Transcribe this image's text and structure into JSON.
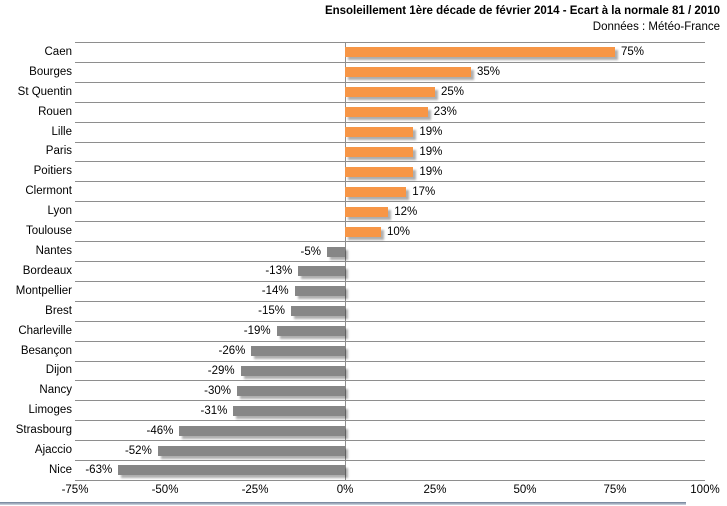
{
  "chart_data": {
    "type": "bar",
    "orientation": "horizontal",
    "title": "Ensoleillement 1ère décade de février 2014 - Ecart à la normale 81 / 2010",
    "subtitle": "Données : Météo-France",
    "categories": [
      "Caen",
      "Bourges",
      "St Quentin",
      "Rouen",
      "Lille",
      "Paris",
      "Poitiers",
      "Clermont",
      "Lyon",
      "Toulouse",
      "Nantes",
      "Bordeaux",
      "Montpellier",
      "Brest",
      "Charleville",
      "Besançon",
      "Dijon",
      "Nancy",
      "Limoges",
      "Strasbourg",
      "Ajaccio",
      "Nice"
    ],
    "values": [
      75,
      35,
      25,
      23,
      19,
      19,
      19,
      17,
      12,
      10,
      -5,
      -13,
      -14,
      -15,
      -19,
      -26,
      -29,
      -30,
      -31,
      -46,
      -52,
      -63
    ],
    "bar_labels": [
      "75%",
      "35%",
      "25%",
      "23%",
      "19%",
      "19%",
      "19%",
      "17%",
      "12%",
      "10%",
      "-5%",
      "-13%",
      "-14%",
      "-15%",
      "-19%",
      "-26%",
      "-29%",
      "-30%",
      "-31%",
      "-46%",
      "-52%",
      "-63%"
    ],
    "xlim": [
      -75,
      100
    ],
    "x_tick_values": [
      -75,
      -50,
      -25,
      0,
      25,
      50,
      75,
      100
    ],
    "x_tick_labels": [
      "-75%",
      "-50%",
      "-25%",
      "0%",
      "25%",
      "50%",
      "75%",
      "100%"
    ],
    "grid": "horizontal-category-separators",
    "legend": "none",
    "colors": {
      "positive_bar": "#F79646",
      "negative_bar": "#868686",
      "gridline": "#8E8E8E",
      "axis_line": "#8E8E8E",
      "text": "#000000"
    }
  },
  "ui": {
    "bottom_edge_color": "#7E8DA3"
  }
}
